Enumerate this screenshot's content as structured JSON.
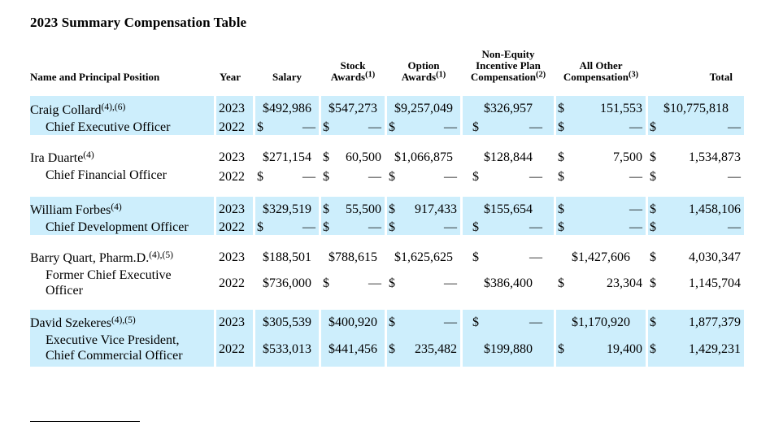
{
  "title": "2023 Summary Compensation Table",
  "headers": {
    "name": "Name and Principal Position",
    "year": "Year",
    "salary": "Salary",
    "stock_line1": "Stock",
    "stock_line2": "Awards",
    "stock_note": "(1)",
    "option_line1": "Option",
    "option_line2": "Awards",
    "option_note": "(1)",
    "noneq_line1": "Non-Equity",
    "noneq_line2": "Incentive Plan",
    "noneq_line3": "Compensation",
    "noneq_note": "(2)",
    "other_line1": "All Other",
    "other_line2": "Compensation",
    "other_note": "(3)",
    "total": "Total"
  },
  "dash": "—",
  "dollar": "$",
  "executives": [
    {
      "name": "Craig Collard",
      "note": "(4),(6)",
      "title_lines": [
        "Chief Executive Officer"
      ],
      "rows": [
        {
          "year": "2023",
          "salary": "$492,986",
          "stock": "$547,273",
          "option": "$9,257,049",
          "noneq": "$326,957",
          "other": "151,553",
          "total": "$10,775,818"
        },
        {
          "year": "2022"
        }
      ]
    },
    {
      "name": "Ira Duarte",
      "note": "(4)",
      "title_lines": [
        "Chief Financial Officer"
      ],
      "rows": [
        {
          "year": "2023",
          "salary": "$271,154",
          "stock": "60,500",
          "option": "$1,066,875",
          "noneq": "$128,844",
          "other": "7,500",
          "total": "1,534,873"
        },
        {
          "year": "2022"
        }
      ]
    },
    {
      "name": "William Forbes",
      "note": "(4)",
      "title_lines": [
        "Chief Development Officer"
      ],
      "rows": [
        {
          "year": "2023",
          "salary": "$329,519",
          "stock": "55,500",
          "option": "917,433",
          "noneq": "$155,654",
          "total": "1,458,106"
        },
        {
          "year": "2022"
        }
      ]
    },
    {
      "name": "Barry Quart, Pharm.D.",
      "note": "(4),(5)",
      "title_lines": [
        "Former Chief Executive",
        "Officer"
      ],
      "rows": [
        {
          "year": "2023",
          "salary": "$188,501",
          "stock": "$788,615",
          "option": "$1,625,625",
          "other": "$1,427,606",
          "total": "4,030,347"
        },
        {
          "year": "2022",
          "salary": "$736,000",
          "noneq": "$386,400",
          "other": "23,304",
          "total": "1,145,704"
        }
      ]
    },
    {
      "name": "David Szekeres",
      "note": "(4),(5)",
      "title_lines": [
        "Executive Vice President,",
        "Chief Commercial Officer"
      ],
      "rows": [
        {
          "year": "2023",
          "salary": "$305,539",
          "stock": "$400,920",
          "other": "$1,170,920",
          "total": "1,877,379"
        },
        {
          "year": "2022",
          "salary": "$533,013",
          "stock": "$441,456",
          "option": "235,482",
          "noneq": "$199,880",
          "other": "19,400",
          "total": "1,429,231"
        }
      ]
    }
  ]
}
